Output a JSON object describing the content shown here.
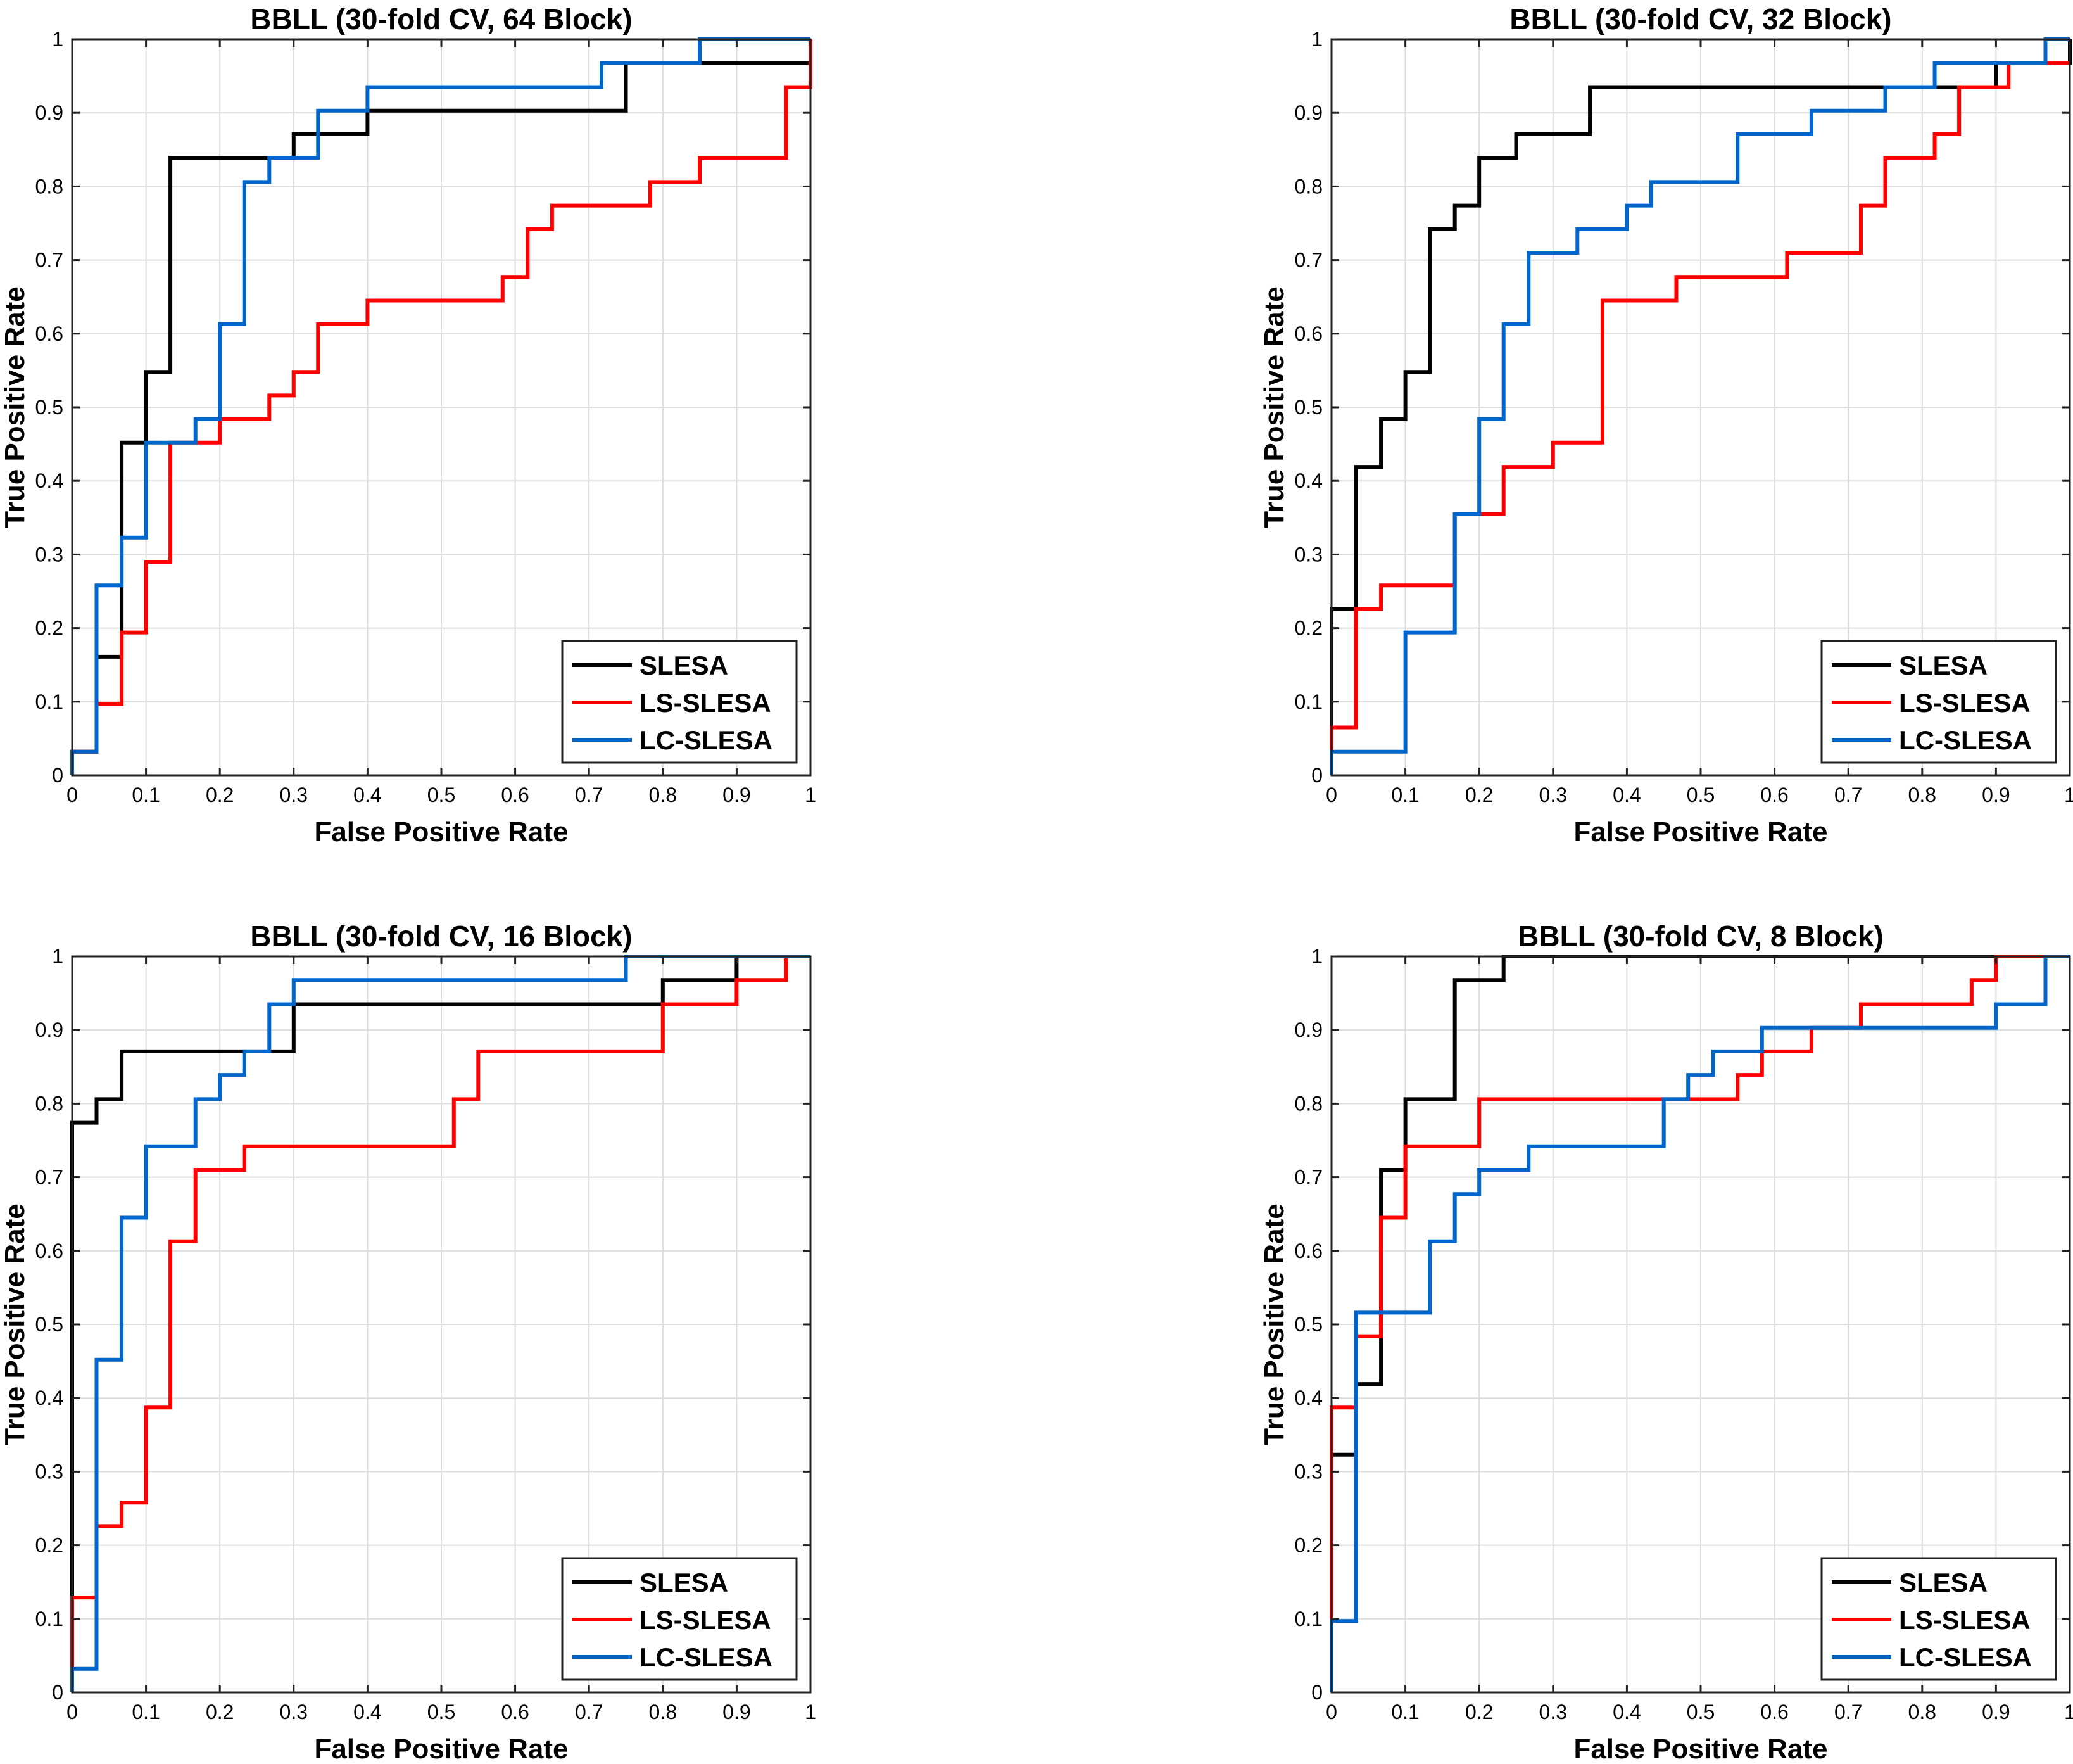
{
  "colors": {
    "SLESA": "#000000",
    "LS-SLESA": "#ff0000",
    "LC-SLESA": "#0066cc"
  },
  "chart_data": [
    {
      "type": "line",
      "title": "BBLL (30-fold CV, 64 Block)",
      "xlabel": "False Positive Rate",
      "ylabel": "True Positive Rate",
      "xlim": [
        0,
        1
      ],
      "ylim": [
        0,
        1
      ],
      "xticks": [
        "0",
        "0.1",
        "0.2",
        "0.3",
        "0.4",
        "0.5",
        "0.6",
        "0.7",
        "0.8",
        "0.9",
        "1"
      ],
      "yticks": [
        "0",
        "0.1",
        "0.2",
        "0.3",
        "0.4",
        "0.5",
        "0.6",
        "0.7",
        "0.8",
        "0.9",
        "1"
      ],
      "grid": true,
      "legend": "bottom-right",
      "series": [
        {
          "name": "SLESA",
          "x": [
            0,
            0,
            0.033,
            0.033,
            0.067,
            0.067,
            0.1,
            0.1,
            0.133,
            0.133,
            0.3,
            0.3,
            0.33,
            0.33,
            0.4,
            0.4,
            0.75,
            0.75,
            1
          ],
          "y": [
            0,
            0.032,
            0.032,
            0.161,
            0.161,
            0.452,
            0.452,
            0.548,
            0.548,
            0.839,
            0.839,
            0.871,
            0.871,
            0.871,
            0.871,
            0.903,
            0.903,
            0.968,
            0.968
          ]
        },
        {
          "name": "LS-SLESA",
          "x": [
            0,
            0,
            0.033,
            0.033,
            0.067,
            0.067,
            0.1,
            0.1,
            0.133,
            0.133,
            0.2,
            0.2,
            0.267,
            0.267,
            0.3,
            0.3,
            0.333,
            0.333,
            0.4,
            0.4,
            0.583,
            0.583,
            0.617,
            0.617,
            0.65,
            0.65,
            0.783,
            0.783,
            0.85,
            0.85,
            0.967,
            0.967,
            1,
            1
          ],
          "y": [
            0,
            0.032,
            0.032,
            0.097,
            0.097,
            0.194,
            0.194,
            0.29,
            0.29,
            0.452,
            0.452,
            0.484,
            0.484,
            0.516,
            0.516,
            0.548,
            0.548,
            0.613,
            0.613,
            0.645,
            0.645,
            0.677,
            0.677,
            0.742,
            0.742,
            0.774,
            0.774,
            0.806,
            0.806,
            0.839,
            0.839,
            0.935,
            0.935,
            1
          ]
        },
        {
          "name": "LC-SLESA",
          "x": [
            0,
            0,
            0.033,
            0.033,
            0.067,
            0.067,
            0.1,
            0.1,
            0.167,
            0.167,
            0.2,
            0.2,
            0.233,
            0.233,
            0.267,
            0.267,
            0.333,
            0.333,
            0.4,
            0.4,
            0.717,
            0.717,
            0.85,
            0.85,
            1
          ],
          "y": [
            0,
            0.032,
            0.032,
            0.258,
            0.258,
            0.323,
            0.323,
            0.452,
            0.452,
            0.484,
            0.484,
            0.613,
            0.613,
            0.806,
            0.806,
            0.839,
            0.839,
            0.903,
            0.903,
            0.935,
            0.935,
            0.968,
            0.968,
            1,
            1
          ]
        }
      ]
    },
    {
      "type": "line",
      "title": "BBLL (30-fold CV, 32 Block)",
      "xlabel": "False Positive Rate",
      "ylabel": "True Positive Rate",
      "xlim": [
        0,
        1
      ],
      "ylim": [
        0,
        1
      ],
      "xticks": [
        "0",
        "0.1",
        "0.2",
        "0.3",
        "0.4",
        "0.5",
        "0.6",
        "0.7",
        "0.8",
        "0.9",
        "1"
      ],
      "yticks": [
        "0",
        "0.1",
        "0.2",
        "0.3",
        "0.4",
        "0.5",
        "0.6",
        "0.7",
        "0.8",
        "0.9",
        "1"
      ],
      "grid": true,
      "legend": "bottom-right",
      "series": [
        {
          "name": "SLESA",
          "x": [
            0,
            0,
            0.033,
            0.033,
            0.067,
            0.067,
            0.1,
            0.1,
            0.133,
            0.133,
            0.167,
            0.167,
            0.2,
            0.2,
            0.25,
            0.25,
            0.3,
            0.3,
            0.35,
            0.35,
            0.9,
            0.9,
            0.967,
            0.967,
            1,
            1
          ],
          "y": [
            0,
            0.226,
            0.226,
            0.419,
            0.419,
            0.484,
            0.484,
            0.548,
            0.548,
            0.742,
            0.742,
            0.774,
            0.774,
            0.839,
            0.839,
            0.871,
            0.871,
            0.871,
            0.871,
            0.935,
            0.935,
            0.968,
            0.968,
            0.968,
            0.968,
            1
          ]
        },
        {
          "name": "LS-SLESA",
          "x": [
            0,
            0,
            0.033,
            0.033,
            0.067,
            0.067,
            0.167,
            0.167,
            0.233,
            0.233,
            0.3,
            0.3,
            0.367,
            0.367,
            0.467,
            0.467,
            0.617,
            0.617,
            0.717,
            0.717,
            0.75,
            0.75,
            0.817,
            0.817,
            0.85,
            0.85,
            0.917,
            0.917,
            1
          ],
          "y": [
            0,
            0.065,
            0.065,
            0.226,
            0.226,
            0.258,
            0.258,
            0.355,
            0.355,
            0.419,
            0.419,
            0.452,
            0.452,
            0.645,
            0.645,
            0.677,
            0.677,
            0.71,
            0.71,
            0.774,
            0.774,
            0.839,
            0.839,
            0.871,
            0.871,
            0.935,
            0.935,
            0.968,
            0.968
          ]
        },
        {
          "name": "LC-SLESA",
          "x": [
            0,
            0,
            0.1,
            0.1,
            0.167,
            0.167,
            0.2,
            0.2,
            0.233,
            0.233,
            0.267,
            0.267,
            0.333,
            0.333,
            0.4,
            0.4,
            0.433,
            0.433,
            0.55,
            0.55,
            0.65,
            0.65,
            0.75,
            0.75,
            0.817,
            0.817,
            0.967,
            0.967,
            1
          ],
          "y": [
            0,
            0.032,
            0.032,
            0.194,
            0.194,
            0.355,
            0.355,
            0.484,
            0.484,
            0.613,
            0.613,
            0.71,
            0.71,
            0.742,
            0.742,
            0.774,
            0.774,
            0.806,
            0.806,
            0.871,
            0.871,
            0.903,
            0.903,
            0.935,
            0.935,
            0.968,
            0.968,
            1,
            1
          ]
        }
      ]
    },
    {
      "type": "line",
      "title": "BBLL (30-fold CV, 16 Block)",
      "xlabel": "False Positive Rate",
      "ylabel": "True Positive Rate",
      "xlim": [
        0,
        1
      ],
      "ylim": [
        0,
        1
      ],
      "xticks": [
        "0",
        "0.1",
        "0.2",
        "0.3",
        "0.4",
        "0.5",
        "0.6",
        "0.7",
        "0.8",
        "0.9",
        "1"
      ],
      "yticks": [
        "0",
        "0.1",
        "0.2",
        "0.3",
        "0.4",
        "0.5",
        "0.6",
        "0.7",
        "0.8",
        "0.9",
        "1"
      ],
      "grid": true,
      "legend": "bottom-right",
      "series": [
        {
          "name": "SLESA",
          "x": [
            0,
            0,
            0.033,
            0.033,
            0.067,
            0.067,
            0.233,
            0.233,
            0.3,
            0.3,
            0.8,
            0.8,
            0.9,
            0.9,
            1
          ],
          "y": [
            0,
            0.774,
            0.774,
            0.806,
            0.806,
            0.871,
            0.871,
            0.871,
            0.871,
            0.935,
            0.935,
            0.968,
            0.968,
            1,
            1
          ]
        },
        {
          "name": "LS-SLESA",
          "x": [
            0,
            0,
            0.033,
            0.033,
            0.067,
            0.067,
            0.1,
            0.1,
            0.133,
            0.133,
            0.167,
            0.167,
            0.233,
            0.233,
            0.517,
            0.517,
            0.55,
            0.55,
            0.8,
            0.8,
            0.9,
            0.9,
            0.967,
            0.967,
            1
          ],
          "y": [
            0,
            0.129,
            0.129,
            0.226,
            0.226,
            0.258,
            0.258,
            0.387,
            0.387,
            0.613,
            0.613,
            0.71,
            0.71,
            0.742,
            0.742,
            0.806,
            0.806,
            0.871,
            0.871,
            0.935,
            0.935,
            0.968,
            0.968,
            1,
            1
          ]
        },
        {
          "name": "LC-SLESA",
          "x": [
            0,
            0,
            0.033,
            0.033,
            0.067,
            0.067,
            0.1,
            0.1,
            0.167,
            0.167,
            0.2,
            0.2,
            0.233,
            0.233,
            0.267,
            0.267,
            0.3,
            0.3,
            0.75,
            0.75,
            1
          ],
          "y": [
            0,
            0.032,
            0.032,
            0.452,
            0.452,
            0.645,
            0.645,
            0.742,
            0.742,
            0.806,
            0.806,
            0.839,
            0.839,
            0.871,
            0.871,
            0.935,
            0.935,
            0.968,
            0.968,
            1,
            1
          ]
        }
      ]
    },
    {
      "type": "line",
      "title": "BBLL (30-fold CV, 8 Block)",
      "xlabel": "False Positive Rate",
      "ylabel": "True Positive Rate",
      "xlim": [
        0,
        1
      ],
      "ylim": [
        0,
        1
      ],
      "xticks": [
        "0",
        "0.1",
        "0.2",
        "0.3",
        "0.4",
        "0.5",
        "0.6",
        "0.7",
        "0.8",
        "0.9",
        "1"
      ],
      "yticks": [
        "0",
        "0.1",
        "0.2",
        "0.3",
        "0.4",
        "0.5",
        "0.6",
        "0.7",
        "0.8",
        "0.9",
        "1"
      ],
      "grid": true,
      "legend": "bottom-right",
      "series": [
        {
          "name": "SLESA",
          "x": [
            0,
            0,
            0.033,
            0.033,
            0.067,
            0.067,
            0.1,
            0.1,
            0.167,
            0.167,
            0.233,
            0.233,
            1
          ],
          "y": [
            0,
            0.323,
            0.323,
            0.419,
            0.419,
            0.71,
            0.71,
            0.806,
            0.806,
            0.968,
            0.968,
            1,
            1
          ]
        },
        {
          "name": "LS-SLESA",
          "x": [
            0,
            0,
            0.033,
            0.033,
            0.067,
            0.067,
            0.1,
            0.1,
            0.2,
            0.2,
            0.483,
            0.483,
            0.55,
            0.55,
            0.583,
            0.583,
            0.65,
            0.65,
            0.717,
            0.717,
            0.867,
            0.867,
            0.9,
            0.9,
            1
          ],
          "y": [
            0,
            0.387,
            0.387,
            0.484,
            0.484,
            0.645,
            0.645,
            0.742,
            0.742,
            0.806,
            0.806,
            0.806,
            0.806,
            0.839,
            0.839,
            0.871,
            0.871,
            0.903,
            0.903,
            0.935,
            0.935,
            0.968,
            0.968,
            1,
            1
          ]
        },
        {
          "name": "LC-SLESA",
          "x": [
            0,
            0,
            0.033,
            0.033,
            0.133,
            0.133,
            0.167,
            0.167,
            0.2,
            0.2,
            0.267,
            0.267,
            0.45,
            0.45,
            0.483,
            0.483,
            0.517,
            0.517,
            0.583,
            0.583,
            0.9,
            0.9,
            0.967,
            0.967,
            1
          ],
          "y": [
            0,
            0.097,
            0.097,
            0.516,
            0.516,
            0.613,
            0.613,
            0.677,
            0.677,
            0.71,
            0.71,
            0.742,
            0.742,
            0.806,
            0.806,
            0.839,
            0.839,
            0.871,
            0.871,
            0.903,
            0.903,
            0.935,
            0.935,
            1,
            1
          ]
        }
      ]
    }
  ]
}
